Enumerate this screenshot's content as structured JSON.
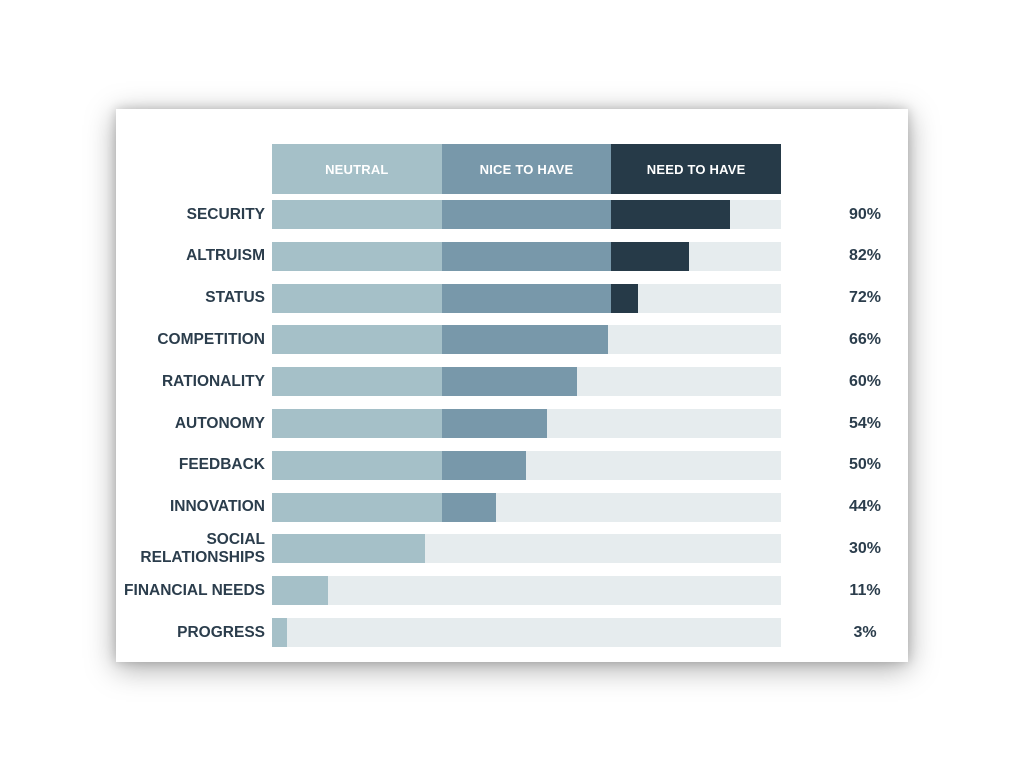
{
  "chart_data": {
    "type": "bar",
    "stacked": true,
    "orientation": "horizontal",
    "xlim": [
      0,
      100
    ],
    "legend": {
      "placement": "top",
      "entries": [
        {
          "label": "NEUTRAL",
          "color": "#a5c0c8"
        },
        {
          "label": "NICE TO HAVE",
          "color": "#7898aa"
        },
        {
          "label": "NEED TO HAVE",
          "color": "#263a48"
        }
      ]
    },
    "colors": {
      "track": "#e6ecee",
      "neutral": "#a5c0c8",
      "nice": "#7898aa",
      "need": "#263a48",
      "text": "#2b3d4c"
    },
    "categories": [
      {
        "label": "SECURITY",
        "value": 90,
        "value_label": "90%"
      },
      {
        "label": "ALTRUISM",
        "value": 82,
        "value_label": "82%"
      },
      {
        "label": "STATUS",
        "value": 72,
        "value_label": "72%"
      },
      {
        "label": "COMPETITION",
        "value": 66,
        "value_label": "66%"
      },
      {
        "label": "RATIONALITY",
        "value": 60,
        "value_label": "60%"
      },
      {
        "label": "AUTONOMY",
        "value": 54,
        "value_label": "54%"
      },
      {
        "label": "FEEDBACK",
        "value": 50,
        "value_label": "50%"
      },
      {
        "label": "INNOVATION",
        "value": 44,
        "value_label": "44%"
      },
      {
        "label": "SOCIAL RELATIONSHIPS",
        "lines": [
          "SOCIAL",
          "RELATIONSHIPS"
        ],
        "value": 30,
        "value_label": "30%"
      },
      {
        "label": "FINANCIAL NEEDS",
        "value": 11,
        "value_label": "11%"
      },
      {
        "label": "PROGRESS",
        "value": 3,
        "value_label": "3%"
      }
    ]
  }
}
